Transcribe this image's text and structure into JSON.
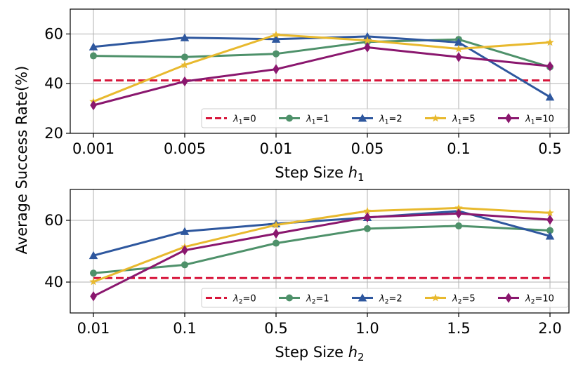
{
  "figure": {
    "ylabel": "Average Success Rate(%)"
  },
  "chart_data": [
    {
      "type": "line",
      "xlabel": "Step Size h₁",
      "xlabel_base": "Step Size ",
      "xlabel_var": "h",
      "xlabel_sub": "1",
      "categories": [
        "0.001",
        "0.005",
        "0.01",
        "0.05",
        "0.1",
        "0.5"
      ],
      "ylim": [
        20,
        70
      ],
      "yticks": [
        20,
        40,
        60
      ],
      "grid": true,
      "legend_position": "lower-right",
      "series": [
        {
          "name": "λ1=0",
          "sym": "λ",
          "sub": "1",
          "val": "=0",
          "color": "#d7153a",
          "dashed": true,
          "marker": "none",
          "values": [
            41.3,
            41.3,
            41.3,
            41.3,
            41.3,
            41.3
          ]
        },
        {
          "name": "λ1=1",
          "sym": "λ",
          "sub": "1",
          "val": "=1",
          "color": "#4e916a",
          "dashed": false,
          "marker": "circle",
          "values": [
            51.2,
            50.7,
            52.0,
            56.8,
            57.8,
            46.7
          ]
        },
        {
          "name": "λ1=2",
          "sym": "λ",
          "sub": "1",
          "val": "=2",
          "color": "#2e579e",
          "dashed": false,
          "marker": "triangle",
          "values": [
            54.8,
            58.5,
            57.9,
            59.0,
            56.6,
            34.6
          ]
        },
        {
          "name": "λ1=5",
          "sym": "λ",
          "sub": "1",
          "val": "=5",
          "color": "#e8b92e",
          "dashed": false,
          "marker": "star",
          "values": [
            32.8,
            47.5,
            59.7,
            57.4,
            54.0,
            56.6
          ]
        },
        {
          "name": "λ1=10",
          "sym": "λ",
          "sub": "1",
          "val": "=10",
          "color": "#8a176e",
          "dashed": false,
          "marker": "diamond",
          "values": [
            31.3,
            40.9,
            45.8,
            54.6,
            50.7,
            47.0
          ]
        }
      ]
    },
    {
      "type": "line",
      "xlabel": "Step Size h₂",
      "xlabel_base": "Step Size ",
      "xlabel_var": "h",
      "xlabel_sub": "2",
      "categories": [
        "0.01",
        "0.1",
        "0.5",
        "1.0",
        "1.5",
        "2.0"
      ],
      "ylim": [
        30,
        70
      ],
      "yticks": [
        40,
        60
      ],
      "grid": true,
      "legend_position": "lower-right",
      "series": [
        {
          "name": "λ2=0",
          "sym": "λ",
          "sub": "2",
          "val": "=0",
          "color": "#d7153a",
          "dashed": true,
          "marker": "none",
          "values": [
            41.3,
            41.3,
            41.3,
            41.3,
            41.3,
            41.3
          ]
        },
        {
          "name": "λ2=1",
          "sym": "λ",
          "sub": "2",
          "val": "=1",
          "color": "#4e916a",
          "dashed": false,
          "marker": "circle",
          "values": [
            42.9,
            45.6,
            52.6,
            57.3,
            58.2,
            56.7
          ]
        },
        {
          "name": "λ2=2",
          "sym": "λ",
          "sub": "2",
          "val": "=2",
          "color": "#2e579e",
          "dashed": false,
          "marker": "triangle",
          "values": [
            48.6,
            56.4,
            58.9,
            60.9,
            63.0,
            54.9
          ]
        },
        {
          "name": "λ2=5",
          "sym": "λ",
          "sub": "2",
          "val": "=5",
          "color": "#e8b92e",
          "dashed": false,
          "marker": "star",
          "values": [
            40.1,
            51.4,
            58.5,
            63.0,
            64.0,
            62.4
          ]
        },
        {
          "name": "λ2=10",
          "sym": "λ",
          "sub": "2",
          "val": "=10",
          "color": "#8a176e",
          "dashed": false,
          "marker": "diamond",
          "values": [
            35.4,
            50.3,
            55.7,
            61.0,
            62.2,
            60.2
          ]
        }
      ]
    }
  ]
}
